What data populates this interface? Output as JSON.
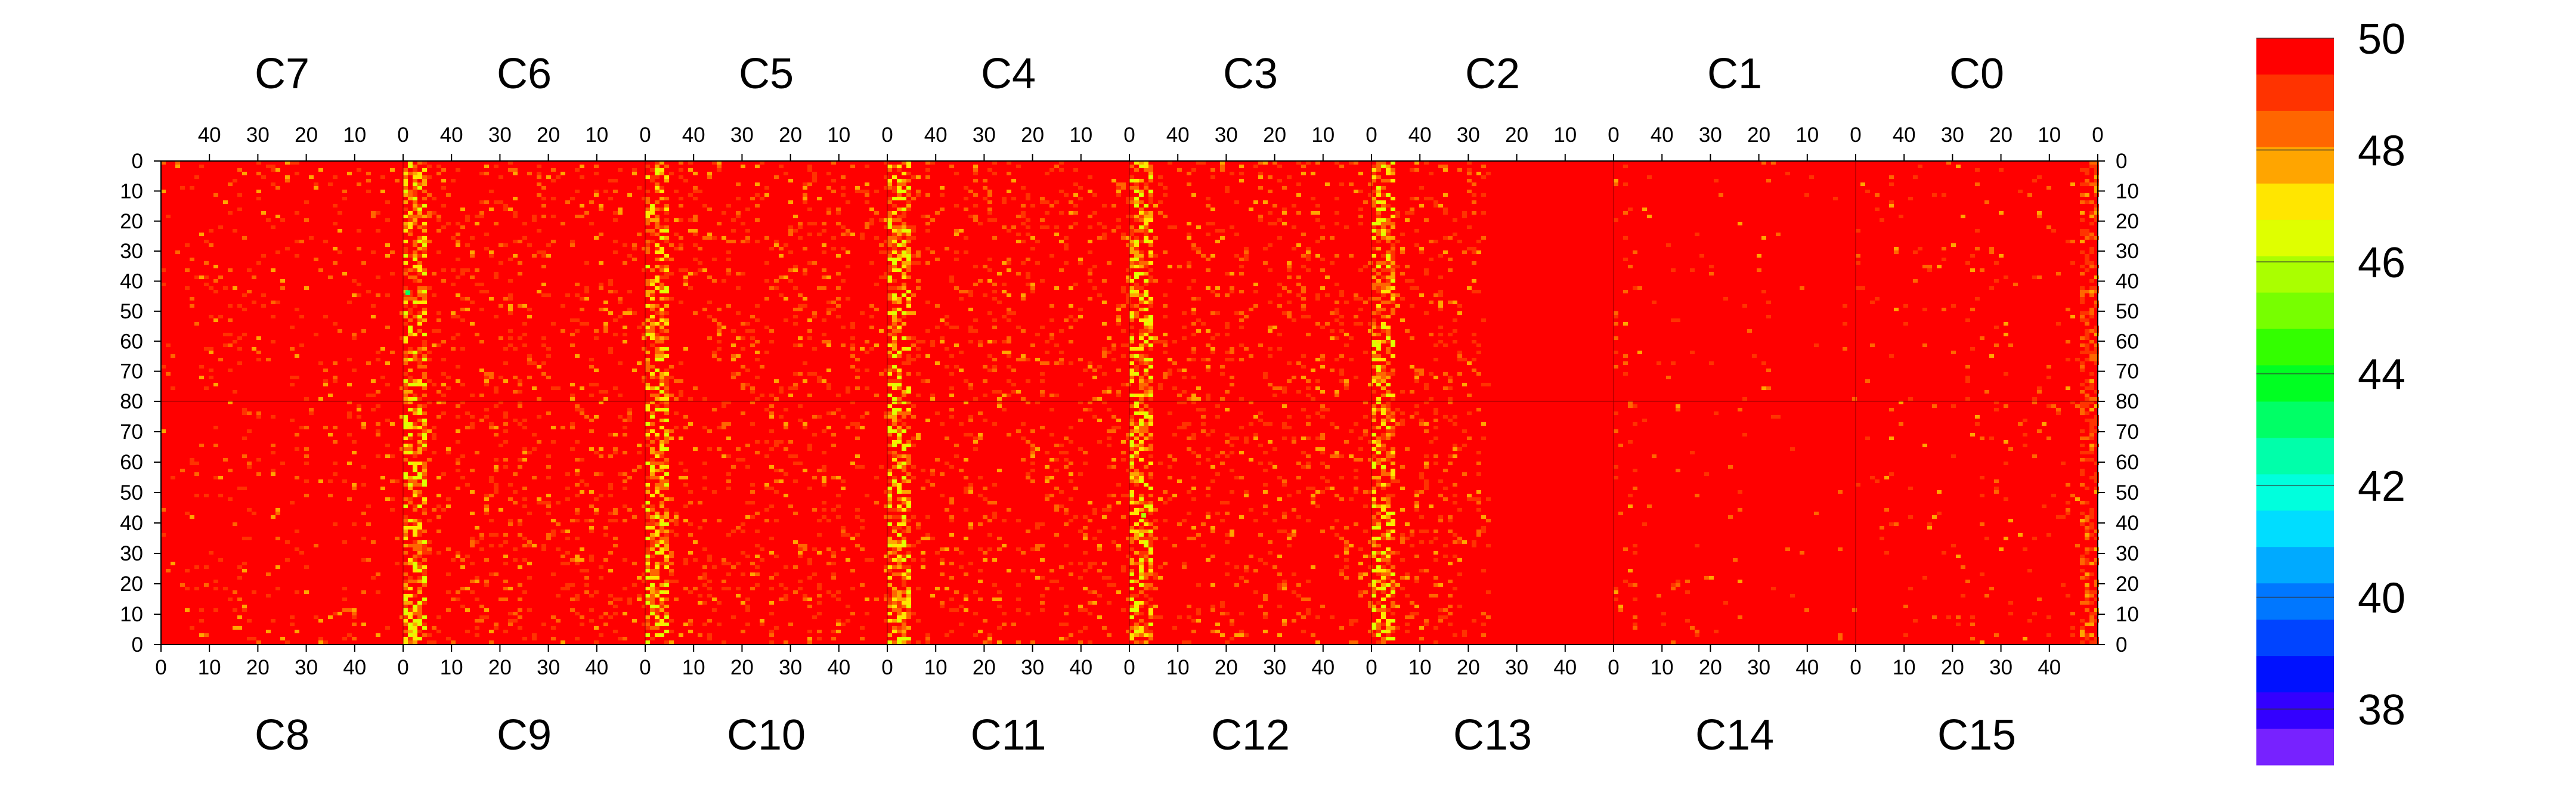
{
  "chart_data": {
    "type": "heatmap",
    "title": "",
    "grid": false,
    "legend_placement": "right",
    "top_chips": [
      "C7",
      "C6",
      "C5",
      "C4",
      "C3",
      "C2",
      "C1",
      "C0"
    ],
    "bottom_chips": [
      "C8",
      "C9",
      "C10",
      "C11",
      "C12",
      "C13",
      "C14",
      "C15"
    ],
    "x_axis": {
      "range_per_chip": [
        0,
        50
      ],
      "top_direction": "descending",
      "bottom_direction": "ascending",
      "top_tick_labels": [
        "40",
        "30",
        "20",
        "10",
        "0"
      ],
      "bottom_tick_labels": [
        "0",
        "10",
        "20",
        "30",
        "40"
      ]
    },
    "y_axis": {
      "upper_half": {
        "range": [
          0,
          80
        ],
        "direction": "down"
      },
      "lower_half": {
        "range": [
          80,
          0
        ],
        "direction": "down"
      },
      "tick_labels": [
        "0",
        "10",
        "20",
        "30",
        "40",
        "50",
        "60",
        "70",
        "80",
        "70",
        "60",
        "50",
        "40",
        "30",
        "20",
        "10",
        "0"
      ]
    },
    "colorbar": {
      "min": 37,
      "max": 50,
      "tick_labels": [
        "50",
        "48",
        "46",
        "44",
        "42",
        "40",
        "38"
      ],
      "colors": [
        "#ff0000",
        "#ff3300",
        "#ff6600",
        "#ffa500",
        "#ffe600",
        "#dfff00",
        "#aaff00",
        "#77ff00",
        "#33ff00",
        "#00ff22",
        "#00ff66",
        "#00ffaa",
        "#00ffdd",
        "#00ddff",
        "#00aaff",
        "#0077ff",
        "#0044ff",
        "#0011ff",
        "#3300ff",
        "#7722ff"
      ]
    },
    "dominant_value": 50,
    "description_values": {
      "typical_channel_low_edge_range": [
        46,
        49
      ],
      "min_observed": 43
    }
  }
}
